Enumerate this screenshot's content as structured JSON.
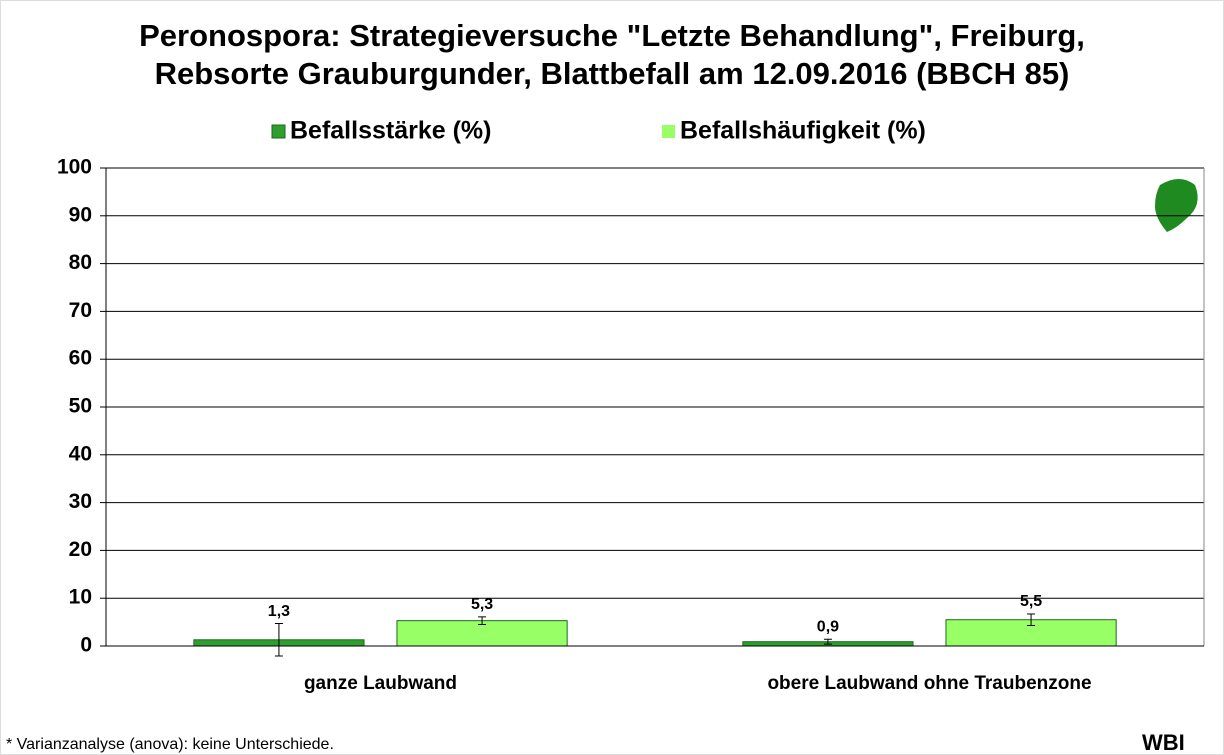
{
  "chart_data": {
    "type": "bar",
    "title": [
      "Peronospora: Strategieversuche \"Letzte Behandlung\", Freiburg,",
      "Rebsorte Grauburgunder, Blattbefall am 12.09.2016 (BBCH 85)"
    ],
    "categories": [
      "ganze Laubwand",
      "obere Laubwand ohne Traubenzone"
    ],
    "series": [
      {
        "name": "Befallsstärke (%)",
        "color": "#2e9e2e",
        "values": [
          1.3,
          0.9
        ],
        "errors": [
          3.4,
          0.5
        ],
        "value_labels": [
          "1,3",
          "0,9"
        ]
      },
      {
        "name": "Befallshäufigkeit (%)",
        "color": "#99ff66",
        "values": [
          5.3,
          5.5
        ],
        "errors": [
          0.8,
          1.2
        ],
        "value_labels": [
          "5,3",
          "5,5"
        ]
      }
    ],
    "ylim": [
      0,
      100
    ],
    "yticks": [
      0,
      10,
      20,
      30,
      40,
      50,
      60,
      70,
      80,
      90,
      100
    ],
    "grid": true,
    "footnote": "* Varianzanalyse (anova): keine Unterschiede.",
    "logo": "WBI"
  }
}
